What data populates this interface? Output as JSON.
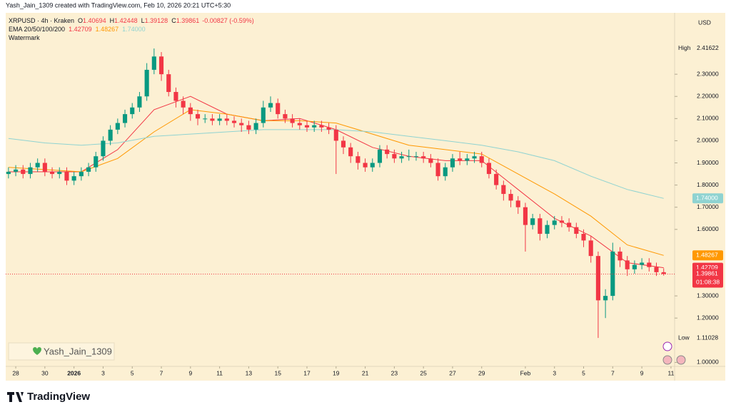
{
  "header": {
    "credit": "Yash_Jain_1309 created with TradingView.com, Feb 10, 2026 20:21 UTC+5:30"
  },
  "chart_data": {
    "type": "candlestick",
    "symbol": "XRPUSD · 4h · Kraken",
    "ohlc_letters": [
      "O",
      "H",
      "L",
      "C"
    ],
    "change_label": "-0.00827 (-0.59%)",
    "currency": "USD",
    "high_label": "High",
    "low_label": "Low",
    "countdown": "01:08:38",
    "legend_watermark": "Watermark",
    "watermark": "Yash_Jain_1309",
    "up_color": "#089981",
    "down_color": "#f23645",
    "x": [
      -0.5,
      0,
      0.5,
      1,
      1.5,
      2,
      2.5,
      3,
      3.5,
      4,
      4.5,
      5,
      5.5,
      6,
      6.5,
      7,
      7.5,
      8,
      8.5,
      9,
      9.5,
      10,
      10.5,
      11,
      11.5,
      12,
      12.5,
      13,
      13.5,
      14,
      14.5,
      15,
      15.5,
      16,
      16.5,
      17,
      17.5,
      18,
      18.5,
      19,
      19.5,
      20,
      20.5,
      21,
      21.5,
      22,
      22.5,
      23,
      23.5,
      24,
      24.5,
      25,
      25.5,
      26,
      26.5,
      27,
      27.5,
      28,
      28.5,
      29,
      29.5,
      30,
      30.5,
      31,
      31.5,
      32,
      32.5,
      33,
      33.5,
      34,
      34.5,
      35,
      35.5,
      36,
      36.5,
      37,
      37.5,
      38,
      38.5,
      39,
      39.5,
      40,
      40.5,
      41,
      41.5,
      42,
      42.5,
      43,
      43.5,
      44,
      44.5
    ],
    "open": [
      1.85,
      1.86,
      1.87,
      1.85,
      1.88,
      1.9,
      1.86,
      1.85,
      1.86,
      1.82,
      1.84,
      1.86,
      1.88,
      1.93,
      2.0,
      2.05,
      2.08,
      2.12,
      2.15,
      2.2,
      2.32,
      2.38,
      2.3,
      2.22,
      2.18,
      2.15,
      2.12,
      2.1,
      2.1,
      2.09,
      2.1,
      2.09,
      2.08,
      2.07,
      2.05,
      2.08,
      2.15,
      2.17,
      2.12,
      2.1,
      2.08,
      2.07,
      2.06,
      2.07,
      2.06,
      2.05,
      2.0,
      1.97,
      1.93,
      1.9,
      1.88,
      1.9,
      1.96,
      1.94,
      1.92,
      1.93,
      1.93,
      1.93,
      1.92,
      1.9,
      1.84,
      1.88,
      1.92,
      1.91,
      1.92,
      1.93,
      1.9,
      1.85,
      1.8,
      1.76,
      1.73,
      1.7,
      1.62,
      1.65,
      1.58,
      1.62,
      1.64,
      1.63,
      1.61,
      1.58,
      1.55,
      1.48,
      1.28,
      1.3,
      1.5,
      1.46,
      1.42,
      1.44,
      1.45,
      1.43,
      1.40694
    ],
    "high": [
      1.88,
      1.89,
      1.89,
      1.9,
      1.92,
      1.92,
      1.88,
      1.88,
      1.88,
      1.86,
      1.88,
      1.9,
      1.95,
      2.02,
      2.07,
      2.1,
      2.14,
      2.17,
      2.22,
      2.35,
      2.41622,
      2.4,
      2.32,
      2.24,
      2.2,
      2.17,
      2.14,
      2.12,
      2.12,
      2.12,
      2.12,
      2.11,
      2.1,
      2.09,
      2.1,
      2.18,
      2.2,
      2.19,
      2.14,
      2.12,
      2.1,
      2.09,
      2.09,
      2.09,
      2.08,
      2.07,
      2.02,
      1.99,
      1.95,
      1.92,
      1.92,
      1.98,
      1.98,
      1.96,
      1.95,
      1.96,
      1.95,
      1.95,
      1.94,
      1.92,
      1.9,
      1.94,
      1.95,
      1.94,
      1.95,
      1.95,
      1.92,
      1.87,
      1.82,
      1.78,
      1.75,
      1.72,
      1.67,
      1.67,
      1.64,
      1.66,
      1.66,
      1.65,
      1.63,
      1.6,
      1.57,
      1.5,
      1.33,
      1.54,
      1.52,
      1.48,
      1.46,
      1.47,
      1.47,
      1.45,
      1.42448
    ],
    "low": [
      1.83,
      1.84,
      1.83,
      1.83,
      1.86,
      1.84,
      1.83,
      1.83,
      1.8,
      1.8,
      1.82,
      1.84,
      1.86,
      1.91,
      1.98,
      2.03,
      2.06,
      2.1,
      2.13,
      2.18,
      2.3,
      2.27,
      2.2,
      2.15,
      2.12,
      2.09,
      2.07,
      2.08,
      2.07,
      2.07,
      2.07,
      2.06,
      2.04,
      2.03,
      2.03,
      2.06,
      2.13,
      2.1,
      2.08,
      2.06,
      2.05,
      2.04,
      2.04,
      2.04,
      2.03,
      1.85,
      1.94,
      1.9,
      1.87,
      1.86,
      1.86,
      1.88,
      1.92,
      1.9,
      1.9,
      1.91,
      1.91,
      1.9,
      1.88,
      1.82,
      1.82,
      1.86,
      1.89,
      1.89,
      1.9,
      1.88,
      1.83,
      1.78,
      1.73,
      1.7,
      1.67,
      1.5,
      1.6,
      1.55,
      1.56,
      1.6,
      1.61,
      1.59,
      1.56,
      1.52,
      1.45,
      1.11028,
      1.2,
      1.28,
      1.43,
      1.39,
      1.4,
      1.42,
      1.41,
      1.39,
      1.39128
    ],
    "close": [
      1.86,
      1.87,
      1.85,
      1.88,
      1.9,
      1.86,
      1.85,
      1.86,
      1.82,
      1.84,
      1.86,
      1.88,
      1.93,
      2.0,
      2.05,
      2.08,
      2.12,
      2.15,
      2.2,
      2.32,
      2.38,
      2.3,
      2.22,
      2.18,
      2.15,
      2.12,
      2.1,
      2.1,
      2.09,
      2.1,
      2.09,
      2.08,
      2.07,
      2.05,
      2.08,
      2.15,
      2.17,
      2.12,
      2.1,
      2.08,
      2.07,
      2.06,
      2.07,
      2.06,
      2.05,
      2.0,
      1.97,
      1.93,
      1.9,
      1.88,
      1.9,
      1.96,
      1.94,
      1.92,
      1.93,
      1.93,
      1.93,
      1.92,
      1.9,
      1.84,
      1.88,
      1.92,
      1.91,
      1.92,
      1.93,
      1.9,
      1.85,
      1.8,
      1.76,
      1.73,
      1.7,
      1.62,
      1.65,
      1.58,
      1.62,
      1.64,
      1.63,
      1.61,
      1.58,
      1.55,
      1.48,
      1.28,
      1.3,
      1.5,
      1.46,
      1.42,
      1.44,
      1.45,
      1.43,
      1.40688,
      1.39861
    ],
    "xlim": [
      -0.69,
      45.25
    ],
    "ylim": [
      0.982,
      2.577
    ],
    "xticks": [
      {
        "value": 0,
        "label": "28"
      },
      {
        "value": 2,
        "label": "30"
      },
      {
        "value": 4,
        "label": "2026"
      },
      {
        "value": 6,
        "label": "3"
      },
      {
        "value": 8,
        "label": "5"
      },
      {
        "value": 10,
        "label": "7"
      },
      {
        "value": 12,
        "label": "9"
      },
      {
        "value": 14,
        "label": "11"
      },
      {
        "value": 16,
        "label": "13"
      },
      {
        "value": 18,
        "label": "15"
      },
      {
        "value": 20,
        "label": "17"
      },
      {
        "value": 22,
        "label": "19"
      },
      {
        "value": 24,
        "label": "21"
      },
      {
        "value": 26,
        "label": "23"
      },
      {
        "value": 28,
        "label": "25"
      },
      {
        "value": 30,
        "label": "27"
      },
      {
        "value": 32,
        "label": "29"
      },
      {
        "value": 35,
        "label": "Feb"
      },
      {
        "value": 37,
        "label": "3"
      },
      {
        "value": 39,
        "label": "5"
      },
      {
        "value": 41,
        "label": "7"
      },
      {
        "value": 43,
        "label": "9"
      },
      {
        "value": 45,
        "label": "11"
      }
    ],
    "yticks": [
      {
        "value": 1.0,
        "label": "1.00000"
      },
      {
        "value": 1.2,
        "label": "1.20000"
      },
      {
        "value": 1.3,
        "label": "1.30000"
      },
      {
        "value": 1.6,
        "label": "1.60000"
      },
      {
        "value": 1.7,
        "label": "1.70000"
      },
      {
        "value": 1.8,
        "label": "1.80000"
      },
      {
        "value": 1.9,
        "label": "1.90000"
      },
      {
        "value": 2.0,
        "label": "2.00000"
      },
      {
        "value": 2.1,
        "label": "2.10000"
      },
      {
        "value": 2.2,
        "label": "2.20000"
      },
      {
        "value": 2.3,
        "label": "2.30000"
      }
    ],
    "grid": false,
    "ema": {
      "label": "EMA 20/50/100/200",
      "x": [
        -0.5,
        2,
        4.5,
        7,
        9.5,
        12,
        14.5,
        17,
        19.5,
        22,
        24.5,
        27,
        29.5,
        32,
        34.5,
        37,
        39.5,
        42,
        44.5
      ],
      "series": [
        {
          "color": "#f23645",
          "values": [
            1.86,
            1.86,
            1.86,
            1.96,
            2.14,
            2.2,
            2.12,
            2.09,
            2.1,
            2.05,
            1.97,
            1.93,
            1.91,
            1.91,
            1.78,
            1.65,
            1.57,
            1.45,
            1.42709
          ]
        },
        {
          "color": "#ff9800",
          "values": [
            1.88,
            1.87,
            1.86,
            1.92,
            2.04,
            2.14,
            2.12,
            2.09,
            2.09,
            2.08,
            2.03,
            1.98,
            1.96,
            1.94,
            1.85,
            1.76,
            1.66,
            1.53,
            1.48267
          ]
        },
        {
          "color": "#8fd3d1",
          "values": [
            2.01,
            1.99,
            1.98,
            1.99,
            2.02,
            2.03,
            2.04,
            2.05,
            2.05,
            2.05,
            2.04,
            2.02,
            2.0,
            1.98,
            1.95,
            1.91,
            1.84,
            1.78,
            1.74
          ],
          "value_label": "1.74000"
        }
      ]
    }
  },
  "footer": {
    "brand": "TradingView"
  }
}
